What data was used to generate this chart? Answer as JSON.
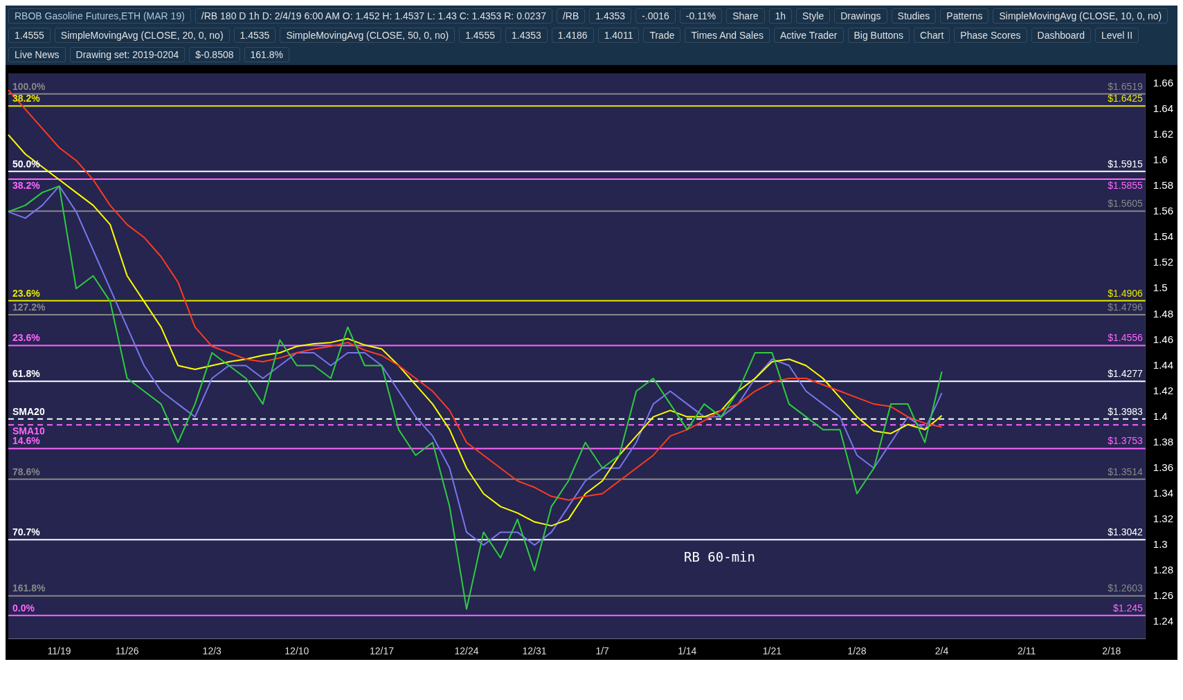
{
  "chart_data": {
    "type": "line",
    "title": "RBOB Gasoline Futures,ETH (MAR 19)",
    "subtitle": "/RB 180 D 1h  D: 2/4/19 6:00 AM  O: 1.452  H: 1.4537  L: 1.43  C: 1.4353  R: 0.0237",
    "categories": [
      null,
      null,
      null,
      "11/19",
      null,
      null,
      null,
      "11/26",
      null,
      null,
      null,
      null,
      "12/3",
      null,
      null,
      null,
      null,
      "12/10",
      null,
      null,
      null,
      null,
      "12/17",
      null,
      null,
      null,
      null,
      "12/24",
      null,
      null,
      null,
      "12/31",
      null,
      null,
      null,
      "1/7",
      null,
      null,
      null,
      null,
      "1/14",
      null,
      null,
      null,
      null,
      "1/21",
      null,
      null,
      null,
      null,
      "1/28",
      null,
      null,
      null,
      null,
      "2/4",
      null,
      null,
      null,
      null,
      "2/11",
      null,
      null,
      null,
      null,
      "2/18",
      null,
      null
    ],
    "series": [
      {
        "type": "line",
        "color": "#2ecc40",
        "values": [
          1.56,
          1.565,
          1.575,
          1.58,
          1.5,
          1.51,
          1.49,
          1.43,
          1.42,
          1.41,
          1.38,
          1.41,
          1.45,
          1.44,
          1.43,
          1.41,
          1.46,
          1.44,
          1.44,
          1.43,
          1.47,
          1.44,
          1.44,
          1.39,
          1.37,
          1.38,
          1.33,
          1.25,
          1.31,
          1.29,
          1.32,
          1.28,
          1.33,
          1.35,
          1.38,
          1.36,
          1.37,
          1.42,
          1.43,
          1.41,
          1.39,
          1.41,
          1.4,
          1.42,
          1.45,
          1.45,
          1.41,
          1.4,
          1.39,
          1.39,
          1.34,
          1.36,
          1.41,
          1.41,
          1.38,
          1.4353,
          null,
          null,
          null,
          null,
          null,
          null,
          null,
          null,
          null,
          null,
          null,
          null
        ]
      },
      {
        "type": "line",
        "color": "#ff3b1f",
        "values": [
          1.655,
          1.64,
          1.625,
          1.61,
          1.6,
          1.585,
          1.565,
          1.55,
          1.54,
          1.525,
          1.505,
          1.47,
          1.455,
          1.45,
          1.445,
          1.443,
          1.446,
          1.45,
          1.453,
          1.455,
          1.458,
          1.452,
          1.448,
          1.44,
          1.43,
          1.42,
          1.405,
          1.38,
          1.37,
          1.36,
          1.35,
          1.345,
          1.338,
          1.335,
          1.338,
          1.34,
          1.35,
          1.36,
          1.37,
          1.385,
          1.39,
          1.397,
          1.405,
          1.41,
          1.42,
          1.427,
          1.43,
          1.43,
          1.425,
          1.42,
          1.415,
          1.41,
          1.408,
          1.4,
          1.395,
          1.392,
          null,
          null,
          null,
          null,
          null,
          null,
          null,
          null,
          null,
          null,
          null,
          null
        ]
      },
      {
        "type": "line",
        "color": "#ffff00",
        "values": [
          1.62,
          1.605,
          1.595,
          1.585,
          1.575,
          1.565,
          1.55,
          1.51,
          1.49,
          1.47,
          1.44,
          1.437,
          1.44,
          1.443,
          1.445,
          1.448,
          1.45,
          1.455,
          1.457,
          1.458,
          1.461,
          1.456,
          1.453,
          1.44,
          1.425,
          1.41,
          1.39,
          1.36,
          1.34,
          1.33,
          1.325,
          1.318,
          1.315,
          1.32,
          1.34,
          1.35,
          1.37,
          1.385,
          1.4,
          1.405,
          1.4,
          1.4,
          1.405,
          1.42,
          1.43,
          1.443,
          1.445,
          1.44,
          1.43,
          1.415,
          1.4,
          1.389,
          1.387,
          1.394,
          1.39,
          1.401,
          null,
          null,
          null,
          null,
          null,
          null,
          null,
          null,
          null,
          null,
          null,
          null
        ]
      },
      {
        "type": "line",
        "color": "#7777ee",
        "values": [
          1.56,
          1.555,
          1.565,
          1.58,
          1.56,
          1.53,
          1.5,
          1.47,
          1.44,
          1.42,
          1.41,
          1.4,
          1.43,
          1.44,
          1.44,
          1.43,
          1.44,
          1.45,
          1.45,
          1.44,
          1.45,
          1.45,
          1.44,
          1.42,
          1.4,
          1.385,
          1.36,
          1.31,
          1.3,
          1.31,
          1.31,
          1.3,
          1.31,
          1.33,
          1.35,
          1.36,
          1.36,
          1.38,
          1.41,
          1.42,
          1.41,
          1.4,
          1.4,
          1.41,
          1.43,
          1.445,
          1.44,
          1.42,
          1.41,
          1.4,
          1.37,
          1.36,
          1.38,
          1.4,
          1.39,
          1.4186,
          null,
          null,
          null,
          null,
          null,
          null,
          null,
          null,
          null,
          null,
          null,
          null
        ]
      }
    ],
    "ylim": [
      1.227,
      1.668
    ],
    "yticks": [
      1.24,
      1.26,
      1.28,
      1.3,
      1.32,
      1.34,
      1.36,
      1.38,
      1.4,
      1.42,
      1.44,
      1.46,
      1.48,
      1.5,
      1.52,
      1.54,
      1.56,
      1.58,
      1.6,
      1.62,
      1.64,
      1.66
    ],
    "grid": false,
    "legend": false,
    "marker": "none",
    "line_style": "solid",
    "ref_lines": [
      {
        "axis": "y",
        "value": 1.6519,
        "label": "$1.6519",
        "color": "#888888"
      },
      {
        "axis": "y",
        "value": 1.6425,
        "label": "$1.6425",
        "color": "#e8e800"
      },
      {
        "axis": "y",
        "value": 1.5915,
        "label": "$1.5915",
        "color": "#ffffff"
      },
      {
        "axis": "y",
        "value": 1.5855,
        "label": "$1.5855",
        "color": "#ff66ff"
      },
      {
        "axis": "y",
        "value": 1.4906,
        "label": "$1.4906",
        "color": "#e8e800"
      },
      {
        "axis": "y",
        "value": 1.4796,
        "label": "$1.4796",
        "color": "#888888"
      },
      {
        "axis": "y",
        "value": 1.4556,
        "label": "$1.4556",
        "color": "#ff66ff"
      },
      {
        "axis": "y",
        "value": 1.4277,
        "label": "$1.4277",
        "color": "#ffffff"
      },
      {
        "axis": "y",
        "value": 1.3983,
        "label": "$1.3983",
        "color": "#ffffff",
        "line_style": "dashed"
      },
      {
        "axis": "y",
        "value": 1.3937,
        "label": null,
        "color": "#ff66ff",
        "line_style": "dashed"
      },
      {
        "axis": "y",
        "value": 1.3753,
        "label": "$1.3753",
        "color": "#ff66ff"
      },
      {
        "axis": "y",
        "value": 1.3514,
        "label": "$1.3514",
        "color": "#888888"
      },
      {
        "axis": "y",
        "value": 1.3042,
        "label": "$1.3042",
        "color": "#ffffff"
      },
      {
        "axis": "y",
        "value": 1.2603,
        "label": "$1.2603",
        "color": "#888888"
      },
      {
        "axis": "y",
        "value": 1.245,
        "label": "$1.245",
        "color": "#ff66ff"
      },
      {
        "axis": "y",
        "value": 1.5605,
        "label": "$1.5605",
        "color": "#888888"
      }
    ],
    "annotations": [
      "/RB",
      "1.4353",
      "-.0016",
      "-0.11%",
      "Share",
      "1h",
      "Style",
      "Drawings",
      "Studies",
      "Patterns",
      "SimpleMovingAvg (CLOSE, 10, 0, no)",
      "1.4555",
      "SimpleMovingAvg (CLOSE, 20, 0, no)",
      "1.4535",
      "SimpleMovingAvg (CLOSE, 50, 0, no)",
      "1.4555",
      "1.4353",
      "1.4186",
      "1.4011",
      "Trade",
      "Times And Sales",
      "Active Trader",
      "Big Buttons",
      "Chart",
      "Phase Scores",
      "Dashboard",
      "Level II",
      "Live News",
      "Drawing set: 2019-0204",
      "$-0.8508",
      "161.8%",
      "100.0%",
      "38.2%",
      "50.0%",
      "38.2%",
      "23.6%",
      "127.2%",
      "23.6%",
      "61.8%",
      "SMA20",
      "SMA10",
      "14.6%",
      "78.6%",
      "70.7%",
      "161.8%",
      "0.0%",
      "RB 60-min"
    ]
  }
}
